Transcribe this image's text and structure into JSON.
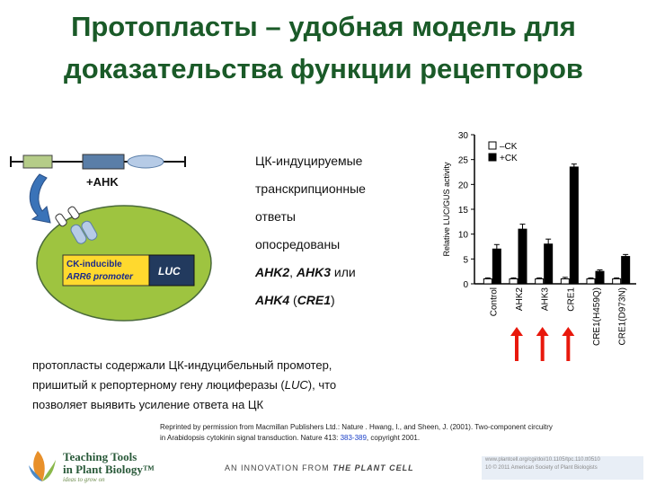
{
  "title": {
    "line1": "Протопласты – удобная модель для",
    "line2": "доказательства функции рецепторов"
  },
  "diagram": {
    "ahk_label": "+AHK",
    "promoter_line1": "CK-inducible",
    "promoter_line2": "ARR6 promoter",
    "reporter_label": "LUC",
    "colors": {
      "cell": "#9ec440",
      "promoter_box": "#ffd92e",
      "reporter_box": "#223a5e",
      "arrow": "#3a73b8"
    }
  },
  "description": {
    "line1": "ЦК-индуцируемые",
    "line2": "транскрипционные",
    "line3": "ответы",
    "line4": "опосредованы",
    "genes": [
      "AHK2",
      "AHK3",
      "AHK4",
      "CRE1"
    ],
    "sep1": ", ",
    "or": " или",
    "open_paren": " (",
    "close_paren": ")"
  },
  "note": {
    "line1": "протопласты содержали ЦК-индуцибельный промотер,",
    "line2_a": "пришитый к репортерному гену люциферазы (",
    "line2_b": "LUC",
    "line2_c": "), что",
    "line3": "позволяет выявить усиление ответа на ЦК"
  },
  "reprint": {
    "line1": "Reprinted by permission from Macmillan Publishers Ltd.: Nature . Hwang, I., and Sheen, J. (2001). Two-component circuitry",
    "line2_a": "in Arabidopsis cytokinin signal transduction. Nature 413: ",
    "line2_link": "383-389",
    "line2_b": ", copyright 2001."
  },
  "footer": {
    "brand_line1": "Teaching Tools",
    "brand_line2": "in Plant Biology™",
    "brand_tagline": "ideas to grow on",
    "innovation_prefix": "AN INNOVATION FROM ",
    "innovation_journal": "THE PLANT CELL",
    "right_line1": "www.plantcell.org/cgi/doi/10.1105/tpc.110.tt0510",
    "right_line2": "10    © 2011 American Society of Plant Biologists"
  },
  "chart_data": {
    "type": "bar",
    "ylabel": "Relative LUC/GUS activity",
    "ylim": [
      0,
      30
    ],
    "yticks": [
      0,
      5,
      10,
      15,
      20,
      25,
      30
    ],
    "categories": [
      "Control",
      "AHK2",
      "AHK3",
      "CRE1",
      "CRE1(H459Q)",
      "CRE1(D973N)"
    ],
    "series": [
      {
        "name": "–CK",
        "values": [
          1.0,
          1.0,
          1.0,
          1.0,
          1.0,
          1.0
        ],
        "errors": [
          0.2,
          0.2,
          0.2,
          0.3,
          0.2,
          0.2
        ],
        "color": "#ffffff"
      },
      {
        "name": "+CK",
        "values": [
          7.0,
          11.0,
          8.0,
          23.5,
          2.5,
          5.5
        ],
        "errors": [
          0.9,
          1.0,
          1.0,
          0.6,
          0.3,
          0.4
        ],
        "color": "#000000"
      }
    ],
    "highlighted": [
      "AHK2",
      "AHK3",
      "CRE1"
    ],
    "highlight_color": "#e8180c",
    "legend_position": "top-left"
  }
}
